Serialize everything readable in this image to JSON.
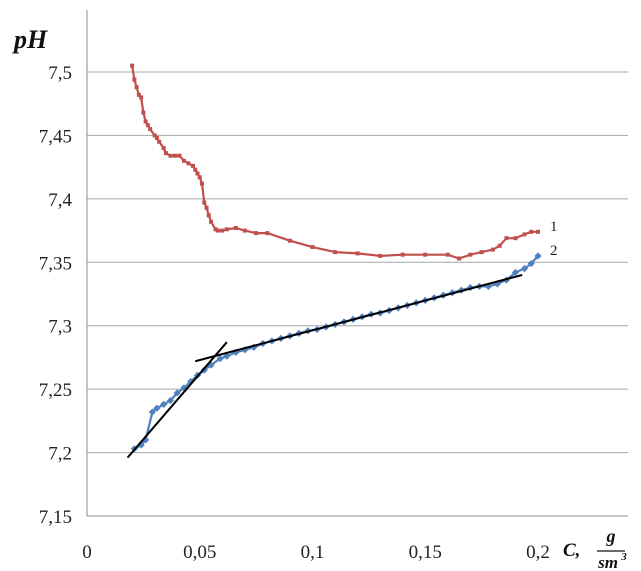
{
  "chart_data": {
    "type": "line",
    "ylabel": "pH",
    "xlabel": {
      "var": "C,",
      "unit_num": "g",
      "unit_den": "sm",
      "unit_exp": "3"
    },
    "xlim": [
      0,
      0.2
    ],
    "ylim": [
      7.15,
      7.5
    ],
    "x_ticks": [
      0,
      0.05,
      0.1,
      0.15,
      0.2
    ],
    "x_tick_labels": [
      "0",
      "0,05",
      "0,1",
      "0,15",
      "0,2"
    ],
    "y_ticks": [
      7.15,
      7.2,
      7.25,
      7.3,
      7.35,
      7.4,
      7.45,
      7.5
    ],
    "y_tick_labels": [
      "7,15",
      "7,2",
      "7,25",
      "7,3",
      "7,35",
      "7,4",
      "7,45",
      "7,5"
    ],
    "grid": "horizontal",
    "legend": "none",
    "series": [
      {
        "name": "1",
        "color": "#c0504d",
        "marker": "square",
        "points": [
          [
            0.02,
            7.505
          ],
          [
            0.021,
            7.494
          ],
          [
            0.022,
            7.488
          ],
          [
            0.023,
            7.482
          ],
          [
            0.024,
            7.48
          ],
          [
            0.025,
            7.468
          ],
          [
            0.026,
            7.461
          ],
          [
            0.027,
            7.458
          ],
          [
            0.028,
            7.455
          ],
          [
            0.03,
            7.45
          ],
          [
            0.031,
            7.448
          ],
          [
            0.032,
            7.445
          ],
          [
            0.034,
            7.44
          ],
          [
            0.035,
            7.436
          ],
          [
            0.037,
            7.434
          ],
          [
            0.039,
            7.434
          ],
          [
            0.041,
            7.434
          ],
          [
            0.043,
            7.43
          ],
          [
            0.045,
            7.428
          ],
          [
            0.047,
            7.426
          ],
          [
            0.048,
            7.423
          ],
          [
            0.049,
            7.42
          ],
          [
            0.05,
            7.417
          ],
          [
            0.051,
            7.412
          ],
          [
            0.052,
            7.397
          ],
          [
            0.053,
            7.393
          ],
          [
            0.054,
            7.387
          ],
          [
            0.055,
            7.382
          ],
          [
            0.057,
            7.376
          ],
          [
            0.058,
            7.375
          ],
          [
            0.06,
            7.375
          ],
          [
            0.062,
            7.376
          ],
          [
            0.066,
            7.377
          ],
          [
            0.07,
            7.375
          ],
          [
            0.075,
            7.373
          ],
          [
            0.08,
            7.373
          ],
          [
            0.09,
            7.367
          ],
          [
            0.1,
            7.362
          ],
          [
            0.11,
            7.358
          ],
          [
            0.12,
            7.357
          ],
          [
            0.13,
            7.355
          ],
          [
            0.14,
            7.356
          ],
          [
            0.15,
            7.356
          ],
          [
            0.16,
            7.356
          ],
          [
            0.165,
            7.353
          ],
          [
            0.17,
            7.356
          ],
          [
            0.175,
            7.358
          ],
          [
            0.18,
            7.36
          ],
          [
            0.183,
            7.363
          ],
          [
            0.186,
            7.369
          ],
          [
            0.19,
            7.369
          ],
          [
            0.194,
            7.372
          ],
          [
            0.197,
            7.374
          ],
          [
            0.2,
            7.374
          ]
        ]
      },
      {
        "name": "2",
        "color": "#4f81bd",
        "marker": "diamond",
        "points": [
          [
            0.021,
            7.203
          ],
          [
            0.024,
            7.206
          ],
          [
            0.026,
            7.21
          ],
          [
            0.029,
            7.232
          ],
          [
            0.031,
            7.235
          ],
          [
            0.034,
            7.238
          ],
          [
            0.037,
            7.241
          ],
          [
            0.04,
            7.247
          ],
          [
            0.043,
            7.251
          ],
          [
            0.046,
            7.256
          ],
          [
            0.049,
            7.261
          ],
          [
            0.052,
            7.265
          ],
          [
            0.055,
            7.269
          ],
          [
            0.059,
            7.274
          ],
          [
            0.062,
            7.276
          ],
          [
            0.066,
            7.279
          ],
          [
            0.07,
            7.281
          ],
          [
            0.074,
            7.283
          ],
          [
            0.078,
            7.286
          ],
          [
            0.082,
            7.288
          ],
          [
            0.086,
            7.29
          ],
          [
            0.09,
            7.292
          ],
          [
            0.094,
            7.294
          ],
          [
            0.098,
            7.296
          ],
          [
            0.102,
            7.297
          ],
          [
            0.106,
            7.299
          ],
          [
            0.11,
            7.301
          ],
          [
            0.114,
            7.303
          ],
          [
            0.118,
            7.305
          ],
          [
            0.122,
            7.307
          ],
          [
            0.126,
            7.309
          ],
          [
            0.13,
            7.31
          ],
          [
            0.134,
            7.312
          ],
          [
            0.138,
            7.314
          ],
          [
            0.142,
            7.316
          ],
          [
            0.146,
            7.318
          ],
          [
            0.15,
            7.32
          ],
          [
            0.154,
            7.322
          ],
          [
            0.158,
            7.324
          ],
          [
            0.162,
            7.326
          ],
          [
            0.166,
            7.328
          ],
          [
            0.17,
            7.33
          ],
          [
            0.174,
            7.331
          ],
          [
            0.178,
            7.331
          ],
          [
            0.182,
            7.333
          ],
          [
            0.186,
            7.336
          ],
          [
            0.19,
            7.342
          ],
          [
            0.194,
            7.345
          ],
          [
            0.197,
            7.349
          ],
          [
            0.2,
            7.355
          ]
        ]
      }
    ],
    "trend_lines": [
      {
        "color": "#000000",
        "from": [
          0.018,
          7.196
        ],
        "to": [
          0.062,
          7.287
        ]
      },
      {
        "color": "#000000",
        "from": [
          0.048,
          7.272
        ],
        "to": [
          0.193,
          7.34
        ]
      }
    ]
  }
}
